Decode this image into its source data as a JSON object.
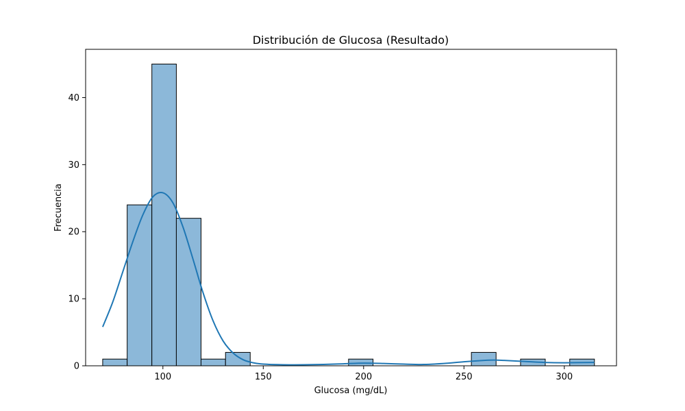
{
  "chart_data": {
    "type": "bar",
    "subtype": "histogram-with-kde",
    "title": "Distribución de Glucosa (Resultado)",
    "xlabel": "Glucosa (mg/dL)",
    "ylabel": "Frecuencia",
    "xlim": [
      61.5,
      326
    ],
    "ylim": [
      0,
      47.2
    ],
    "xticks": [
      100,
      150,
      200,
      250,
      300
    ],
    "yticks": [
      0,
      10,
      20,
      30,
      40
    ],
    "grid": false,
    "legend": "none",
    "bins": [
      {
        "x0": 70,
        "x1": 82.2,
        "count": 1
      },
      {
        "x0": 82.2,
        "x1": 94.5,
        "count": 24
      },
      {
        "x0": 94.5,
        "x1": 106.7,
        "count": 45
      },
      {
        "x0": 106.7,
        "x1": 119.0,
        "count": 22
      },
      {
        "x0": 119.0,
        "x1": 131.2,
        "count": 1
      },
      {
        "x0": 131.2,
        "x1": 143.5,
        "count": 2
      },
      {
        "x0": 143.5,
        "x1": 155.7,
        "count": 0
      },
      {
        "x0": 155.7,
        "x1": 168.0,
        "count": 0
      },
      {
        "x0": 168.0,
        "x1": 180.2,
        "count": 0
      },
      {
        "x0": 180.2,
        "x1": 192.5,
        "count": 0
      },
      {
        "x0": 192.5,
        "x1": 204.7,
        "count": 1
      },
      {
        "x0": 204.7,
        "x1": 217.0,
        "count": 0
      },
      {
        "x0": 217.0,
        "x1": 229.2,
        "count": 0
      },
      {
        "x0": 229.2,
        "x1": 241.5,
        "count": 0
      },
      {
        "x0": 241.5,
        "x1": 253.7,
        "count": 0
      },
      {
        "x0": 253.7,
        "x1": 266.0,
        "count": 2
      },
      {
        "x0": 266.0,
        "x1": 278.2,
        "count": 0
      },
      {
        "x0": 278.2,
        "x1": 290.5,
        "count": 1
      },
      {
        "x0": 290.5,
        "x1": 302.7,
        "count": 0
      },
      {
        "x0": 302.7,
        "x1": 315.0,
        "count": 1
      }
    ],
    "kde": {
      "x": [
        70,
        75,
        80,
        85,
        90,
        95,
        100,
        105,
        110,
        115,
        120,
        125,
        130,
        135,
        140,
        145,
        150,
        160,
        170,
        180,
        190,
        200,
        210,
        220,
        230,
        240,
        250,
        260,
        265,
        270,
        280,
        290,
        300,
        315
      ],
      "y": [
        5.8,
        9.5,
        14.0,
        18.5,
        22.5,
        25.2,
        25.8,
        24.3,
        20.7,
        15.9,
        10.9,
        6.7,
        3.7,
        1.9,
        0.9,
        0.45,
        0.25,
        0.15,
        0.15,
        0.2,
        0.3,
        0.4,
        0.35,
        0.25,
        0.2,
        0.35,
        0.6,
        0.8,
        0.85,
        0.8,
        0.65,
        0.5,
        0.45,
        0.5
      ]
    },
    "colors": {
      "bar_fill": "#8cb8d9",
      "bar_edge": "#000000",
      "kde_line": "#1f77b4"
    }
  }
}
